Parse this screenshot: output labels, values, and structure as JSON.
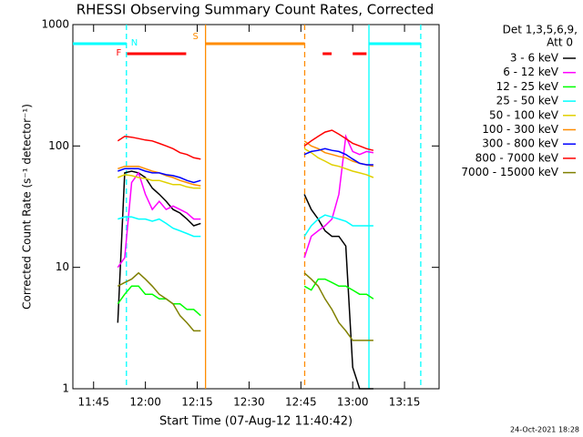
{
  "chart_data": {
    "type": "line",
    "title": "RHESSI Observing Summary Count Rates, Corrected",
    "x_label": "Start Time (07-Aug-12 11:40:42)",
    "y_label": "Corrected Count Rate (s⁻¹ detector⁻¹)",
    "footer": "24-Oct-2021 18:28",
    "legend_title": [
      "Det 1,3,5,6,9,",
      "Att 0"
    ],
    "legend_position": "right",
    "log_y": true,
    "xlim": [
      699,
      805
    ],
    "ylim": [
      1,
      1000
    ],
    "xticks": [
      {
        "value": 705,
        "label": "11:45"
      },
      {
        "value": 720,
        "label": "12:00"
      },
      {
        "value": 735,
        "label": "12:15"
      },
      {
        "value": 750,
        "label": "12:30"
      },
      {
        "value": 765,
        "label": "12:45"
      },
      {
        "value": 780,
        "label": "13:00"
      },
      {
        "value": 795,
        "label": "13:15"
      }
    ],
    "yticks": [
      1,
      10,
      100,
      1000
    ],
    "x": [
      712,
      714,
      716,
      718,
      720,
      722,
      724,
      726,
      728,
      730,
      732,
      734,
      736,
      750,
      766,
      768,
      770,
      772,
      774,
      776,
      778,
      780,
      782,
      784,
      786
    ],
    "series": [
      {
        "name": "3 - 6 keV",
        "color": "#000000",
        "values": [
          3.5,
          60,
          62,
          60,
          55,
          45,
          40,
          35,
          30,
          28,
          25,
          22,
          23,
          null,
          40,
          30,
          25,
          20,
          18,
          18,
          15,
          1.5,
          1,
          1,
          1
        ]
      },
      {
        "name": "6 - 12 keV",
        "color": "#ff00ff",
        "values": [
          10,
          12,
          50,
          60,
          40,
          30,
          35,
          30,
          32,
          30,
          28,
          25,
          25,
          null,
          12,
          18,
          20,
          22,
          25,
          40,
          120,
          90,
          85,
          90,
          88
        ]
      },
      {
        "name": "12 - 25 keV",
        "color": "#00ff00",
        "values": [
          5,
          6,
          7,
          7,
          6,
          6,
          5.5,
          5.5,
          5,
          5,
          4.5,
          4.5,
          4,
          null,
          7,
          6.5,
          8,
          8,
          7.5,
          7,
          7,
          6.5,
          6,
          6,
          5.5
        ]
      },
      {
        "name": "25 - 50 keV",
        "color": "#00ffff",
        "values": [
          25,
          26,
          26,
          25,
          25,
          24,
          25,
          23,
          21,
          20,
          19,
          18,
          18,
          null,
          18,
          22,
          25,
          27,
          26,
          25,
          24,
          22,
          22,
          22,
          22
        ]
      },
      {
        "name": "50 - 100 keV",
        "color": "#e0d000",
        "values": [
          55,
          58,
          57,
          55,
          54,
          52,
          52,
          50,
          48,
          48,
          46,
          45,
          45,
          null,
          95,
          88,
          80,
          75,
          70,
          68,
          65,
          62,
          60,
          58,
          55
        ]
      },
      {
        "name": "100 - 300 keV",
        "color": "#ff8c00",
        "values": [
          65,
          68,
          68,
          68,
          65,
          62,
          60,
          57,
          55,
          52,
          50,
          48,
          47,
          null,
          110,
          100,
          95,
          88,
          85,
          82,
          80,
          75,
          72,
          70,
          68
        ]
      },
      {
        "name": "300 - 800 keV",
        "color": "#0000ff",
        "values": [
          62,
          65,
          65,
          65,
          62,
          60,
          60,
          58,
          57,
          55,
          52,
          50,
          52,
          null,
          85,
          90,
          92,
          95,
          92,
          90,
          85,
          78,
          72,
          70,
          70
        ]
      },
      {
        "name": "800 - 7000 keV",
        "color": "#ff0000",
        "values": [
          110,
          120,
          118,
          115,
          112,
          110,
          105,
          100,
          95,
          88,
          85,
          80,
          78,
          null,
          100,
          110,
          120,
          130,
          135,
          125,
          115,
          105,
          100,
          95,
          92
        ]
      },
      {
        "name": "7000 - 15000 keV",
        "color": "#808000",
        "values": [
          7,
          7.5,
          8,
          9,
          8,
          7,
          6,
          5.5,
          5,
          4,
          3.5,
          3,
          3,
          null,
          9,
          8,
          7,
          5.5,
          4.5,
          3.5,
          3,
          2.5,
          2.5,
          2.5,
          2.5
        ]
      }
    ],
    "vlines": [
      {
        "x": 714.5,
        "color": "#00ffff",
        "dash": true
      },
      {
        "x": 737.4,
        "color": "#ff8c00",
        "dash": false
      },
      {
        "x": 766.1,
        "color": "#ff8c00",
        "dash": true
      },
      {
        "x": 784.7,
        "color": "#00ffff",
        "dash": false
      },
      {
        "x": 799.7,
        "color": "#00ffff",
        "dash": true
      }
    ],
    "bars": [
      {
        "x": [
          699,
          714.5
        ],
        "color": "#00ffff",
        "level": "upper"
      },
      {
        "x": [
          737.4,
          766.1
        ],
        "color": "#ff8c00",
        "level": "upper"
      },
      {
        "x": [
          784.7,
          799.7
        ],
        "color": "#00ffff",
        "level": "upper"
      },
      {
        "x": [
          714.7,
          731.8
        ],
        "color": "#ff0000",
        "level": "lower"
      },
      {
        "x": [
          771.3,
          773.9
        ],
        "color": "#ff0000",
        "level": "lower"
      },
      {
        "x": [
          780,
          784
        ],
        "color": "#ff0000",
        "level": "lower"
      }
    ],
    "flags": [
      {
        "text": "F",
        "x": 712.3,
        "color": "#ff0000",
        "level": "lower"
      },
      {
        "text": "N",
        "x": 716.8,
        "color": "#00ffff",
        "level": "upper"
      },
      {
        "text": "S",
        "x": 734.5,
        "color": "#ff8c00",
        "level": "top"
      }
    ]
  }
}
